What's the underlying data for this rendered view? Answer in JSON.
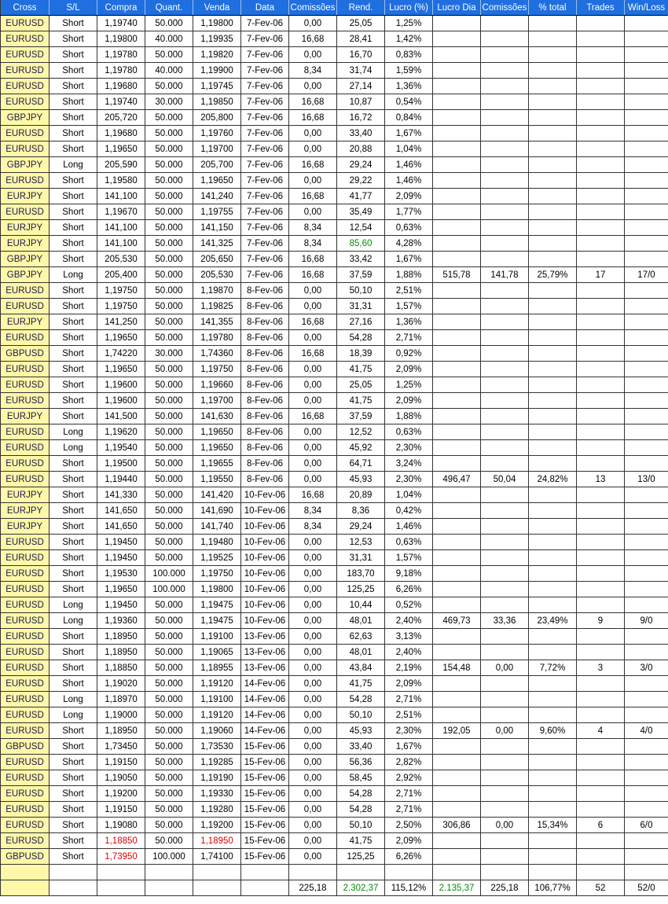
{
  "colors": {
    "header": "#1f6fe0",
    "cross_bg": "#fff8a8",
    "red": "#e00000",
    "green": "#0a8a0a"
  },
  "headers": [
    "Cross",
    "S/L",
    "Compra",
    "Quant.",
    "Venda",
    "Data",
    "Comissões",
    "Rend.",
    "Lucro (%)",
    "Lucro Dia",
    "Comissões",
    "% total",
    "Trades",
    "Win/Loss"
  ],
  "rows": [
    [
      "EURUSD",
      "Short",
      "1,19740",
      "50.000",
      "1,19800",
      "7-Fev-06",
      "0,00",
      "25,05",
      "1,25%",
      "",
      "",
      "",
      "",
      ""
    ],
    [
      "EURUSD",
      "Short",
      "1,19800",
      "40.000",
      "1,19935",
      "7-Fev-06",
      "16,68",
      "28,41",
      "1,42%",
      "",
      "",
      "",
      "",
      ""
    ],
    [
      "EURUSD",
      "Short",
      "1,19780",
      "50.000",
      "1,19820",
      "7-Fev-06",
      "0,00",
      "16,70",
      "0,83%",
      "",
      "",
      "",
      "",
      ""
    ],
    [
      "EURUSD",
      "Short",
      "1,19780",
      "40.000",
      "1,19900",
      "7-Fev-06",
      "8,34",
      "31,74",
      "1,59%",
      "",
      "",
      "",
      "",
      ""
    ],
    [
      "EURUSD",
      "Short",
      "1,19680",
      "50.000",
      "1,19745",
      "7-Fev-06",
      "0,00",
      "27,14",
      "1,36%",
      "",
      "",
      "",
      "",
      ""
    ],
    [
      "EURUSD",
      "Short",
      "1,19740",
      "30.000",
      "1,19850",
      "7-Fev-06",
      "16,68",
      "10,87",
      "0,54%",
      "",
      "",
      "",
      "",
      ""
    ],
    [
      "GBPJPY",
      "Short",
      "205,720",
      "50.000",
      "205,800",
      "7-Fev-06",
      "16,68",
      "16,72",
      "0,84%",
      "",
      "",
      "",
      "",
      ""
    ],
    [
      "EURUSD",
      "Short",
      "1,19680",
      "50.000",
      "1,19760",
      "7-Fev-06",
      "0,00",
      "33,40",
      "1,67%",
      "",
      "",
      "",
      "",
      ""
    ],
    [
      "EURUSD",
      "Short",
      "1,19650",
      "50.000",
      "1,19700",
      "7-Fev-06",
      "0,00",
      "20,88",
      "1,04%",
      "",
      "",
      "",
      "",
      ""
    ],
    [
      "GBPJPY",
      "Long",
      "205,590",
      "50.000",
      "205,700",
      "7-Fev-06",
      "16,68",
      "29,24",
      "1,46%",
      "",
      "",
      "",
      "",
      ""
    ],
    [
      "EURUSD",
      "Short",
      "1,19580",
      "50.000",
      "1,19650",
      "7-Fev-06",
      "0,00",
      "29,22",
      "1,46%",
      "",
      "",
      "",
      "",
      ""
    ],
    [
      "EURJPY",
      "Short",
      "141,100",
      "50.000",
      "141,240",
      "7-Fev-06",
      "16,68",
      "41,77",
      "2,09%",
      "",
      "",
      "",
      "",
      ""
    ],
    [
      "EURUSD",
      "Short",
      "1,19670",
      "50.000",
      "1,19755",
      "7-Fev-06",
      "0,00",
      "35,49",
      "1,77%",
      "",
      "",
      "",
      "",
      ""
    ],
    [
      "EURJPY",
      "Short",
      "141,100",
      "50.000",
      "141,150",
      "7-Fev-06",
      "8,34",
      "12,54",
      "0,63%",
      "",
      "",
      "",
      "",
      ""
    ],
    [
      "EURJPY",
      "Short",
      "141,100",
      "50.000",
      "141,325",
      "7-Fev-06",
      "8,34",
      "85,60",
      "4,28%",
      "",
      "",
      "",
      "",
      ""
    ],
    [
      "GBPJPY",
      "Short",
      "205,530",
      "50.000",
      "205,650",
      "7-Fev-06",
      "16,68",
      "33,42",
      "1,67%",
      "",
      "",
      "",
      "",
      ""
    ],
    [
      "GBPJPY",
      "Long",
      "205,400",
      "50.000",
      "205,530",
      "7-Fev-06",
      "16,68",
      "37,59",
      "1,88%",
      "515,78",
      "141,78",
      "25,79%",
      "17",
      "17/0"
    ],
    [
      "EURUSD",
      "Short",
      "1,19750",
      "50.000",
      "1,19870",
      "8-Fev-06",
      "0,00",
      "50,10",
      "2,51%",
      "",
      "",
      "",
      "",
      ""
    ],
    [
      "EURUSD",
      "Short",
      "1,19750",
      "50.000",
      "1,19825",
      "8-Fev-06",
      "0,00",
      "31,31",
      "1,57%",
      "",
      "",
      "",
      "",
      ""
    ],
    [
      "EURJPY",
      "Short",
      "141,250",
      "50.000",
      "141,355",
      "8-Fev-06",
      "16,68",
      "27,16",
      "1,36%",
      "",
      "",
      "",
      "",
      ""
    ],
    [
      "EURUSD",
      "Short",
      "1,19650",
      "50.000",
      "1,19780",
      "8-Fev-06",
      "0,00",
      "54,28",
      "2,71%",
      "",
      "",
      "",
      "",
      ""
    ],
    [
      "GBPUSD",
      "Short",
      "1,74220",
      "30.000",
      "1,74360",
      "8-Fev-06",
      "16,68",
      "18,39",
      "0,92%",
      "",
      "",
      "",
      "",
      ""
    ],
    [
      "EURUSD",
      "Short",
      "1,19650",
      "50.000",
      "1,19750",
      "8-Fev-06",
      "0,00",
      "41,75",
      "2,09%",
      "",
      "",
      "",
      "",
      ""
    ],
    [
      "EURUSD",
      "Short",
      "1,19600",
      "50.000",
      "1,19660",
      "8-Fev-06",
      "0,00",
      "25,05",
      "1,25%",
      "",
      "",
      "",
      "",
      ""
    ],
    [
      "EURUSD",
      "Short",
      "1,19600",
      "50.000",
      "1,19700",
      "8-Fev-06",
      "0,00",
      "41,75",
      "2,09%",
      "",
      "",
      "",
      "",
      ""
    ],
    [
      "EURJPY",
      "Short",
      "141,500",
      "50.000",
      "141,630",
      "8-Fev-06",
      "16,68",
      "37,59",
      "1,88%",
      "",
      "",
      "",
      "",
      ""
    ],
    [
      "EURUSD",
      "Long",
      "1,19620",
      "50.000",
      "1,19650",
      "8-Fev-06",
      "0,00",
      "12,52",
      "0,63%",
      "",
      "",
      "",
      "",
      ""
    ],
    [
      "EURUSD",
      "Long",
      "1,19540",
      "50.000",
      "1,19650",
      "8-Fev-06",
      "0,00",
      "45,92",
      "2,30%",
      "",
      "",
      "",
      "",
      ""
    ],
    [
      "EURUSD",
      "Short",
      "1,19500",
      "50.000",
      "1,19655",
      "8-Fev-06",
      "0,00",
      "64,71",
      "3,24%",
      "",
      "",
      "",
      "",
      ""
    ],
    [
      "EURUSD",
      "Short",
      "1,19440",
      "50.000",
      "1,19550",
      "8-Fev-06",
      "0,00",
      "45,93",
      "2,30%",
      "496,47",
      "50,04",
      "24,82%",
      "13",
      "13/0"
    ],
    [
      "EURJPY",
      "Short",
      "141,330",
      "50.000",
      "141,420",
      "10-Fev-06",
      "16,68",
      "20,89",
      "1,04%",
      "",
      "",
      "",
      "",
      ""
    ],
    [
      "EURJPY",
      "Short",
      "141,650",
      "50.000",
      "141,690",
      "10-Fev-06",
      "8,34",
      "8,36",
      "0,42%",
      "",
      "",
      "",
      "",
      ""
    ],
    [
      "EURJPY",
      "Short",
      "141,650",
      "50.000",
      "141,740",
      "10-Fev-06",
      "8,34",
      "29,24",
      "1,46%",
      "",
      "",
      "",
      "",
      ""
    ],
    [
      "EURUSD",
      "Short",
      "1,19450",
      "50.000",
      "1,19480",
      "10-Fev-06",
      "0,00",
      "12,53",
      "0,63%",
      "",
      "",
      "",
      "",
      ""
    ],
    [
      "EURUSD",
      "Short",
      "1,19450",
      "50.000",
      "1,19525",
      "10-Fev-06",
      "0,00",
      "31,31",
      "1,57%",
      "",
      "",
      "",
      "",
      ""
    ],
    [
      "EURUSD",
      "Short",
      "1,19530",
      "100.000",
      "1,19750",
      "10-Fev-06",
      "0,00",
      "183,70",
      "9,18%",
      "",
      "",
      "",
      "",
      ""
    ],
    [
      "EURUSD",
      "Short",
      "1,19650",
      "100.000",
      "1,19800",
      "10-Fev-06",
      "0,00",
      "125,25",
      "6,26%",
      "",
      "",
      "",
      "",
      ""
    ],
    [
      "EURUSD",
      "Long",
      "1,19450",
      "50.000",
      "1,19475",
      "10-Fev-06",
      "0,00",
      "10,44",
      "0,52%",
      "",
      "",
      "",
      "",
      ""
    ],
    [
      "EURUSD",
      "Long",
      "1,19360",
      "50.000",
      "1,19475",
      "10-Fev-06",
      "0,00",
      "48,01",
      "2,40%",
      "469,73",
      "33,36",
      "23,49%",
      "9",
      "9/0"
    ],
    [
      "EURUSD",
      "Short",
      "1,18950",
      "50.000",
      "1,19100",
      "13-Fev-06",
      "0,00",
      "62,63",
      "3,13%",
      "",
      "",
      "",
      "",
      ""
    ],
    [
      "EURUSD",
      "Short",
      "1,18950",
      "50.000",
      "1,19065",
      "13-Fev-06",
      "0,00",
      "48,01",
      "2,40%",
      "",
      "",
      "",
      "",
      ""
    ],
    [
      "EURUSD",
      "Short",
      "1,18850",
      "50.000",
      "1,18955",
      "13-Fev-06",
      "0,00",
      "43,84",
      "2,19%",
      "154,48",
      "0,00",
      "7,72%",
      "3",
      "3/0"
    ],
    [
      "EURUSD",
      "Short",
      "1,19020",
      "50.000",
      "1,19120",
      "14-Fev-06",
      "0,00",
      "41,75",
      "2,09%",
      "",
      "",
      "",
      "",
      ""
    ],
    [
      "EURUSD",
      "Long",
      "1,18970",
      "50.000",
      "1,19100",
      "14-Fev-06",
      "0,00",
      "54,28",
      "2,71%",
      "",
      "",
      "",
      "",
      ""
    ],
    [
      "EURUSD",
      "Long",
      "1,19000",
      "50.000",
      "1,19120",
      "14-Fev-06",
      "0,00",
      "50,10",
      "2,51%",
      "",
      "",
      "",
      "",
      ""
    ],
    [
      "EURUSD",
      "Short",
      "1,18950",
      "50.000",
      "1,19060",
      "14-Fev-06",
      "0,00",
      "45,93",
      "2,30%",
      "192,05",
      "0,00",
      "9,60%",
      "4",
      "4/0"
    ],
    [
      "GBPUSD",
      "Short",
      "1,73450",
      "50.000",
      "1,73530",
      "15-Fev-06",
      "0,00",
      "33,40",
      "1,67%",
      "",
      "",
      "",
      "",
      ""
    ],
    [
      "EURUSD",
      "Short",
      "1,19150",
      "50.000",
      "1,19285",
      "15-Fev-06",
      "0,00",
      "56,36",
      "2,82%",
      "",
      "",
      "",
      "",
      ""
    ],
    [
      "EURUSD",
      "Short",
      "1,19050",
      "50.000",
      "1,19190",
      "15-Fev-06",
      "0,00",
      "58,45",
      "2,92%",
      "",
      "",
      "",
      "",
      ""
    ],
    [
      "EURUSD",
      "Short",
      "1,19200",
      "50.000",
      "1,19330",
      "15-Fev-06",
      "0,00",
      "54,28",
      "2,71%",
      "",
      "",
      "",
      "",
      ""
    ],
    [
      "EURUSD",
      "Short",
      "1,19150",
      "50.000",
      "1,19280",
      "15-Fev-06",
      "0,00",
      "54,28",
      "2,71%",
      "",
      "",
      "",
      "",
      ""
    ],
    [
      "EURUSD",
      "Short",
      "1,19080",
      "50.000",
      "1,19200",
      "15-Fev-06",
      "0,00",
      "50,10",
      "2,50%",
      "306,86",
      "0,00",
      "15,34%",
      "6",
      "6/0"
    ],
    [
      "EURUSD",
      "Short",
      "1,18850",
      "50.000",
      "1,18950",
      "15-Fev-06",
      "0,00",
      "41,75",
      "2,09%",
      "",
      "",
      "",
      "",
      ""
    ],
    [
      "GBPUSD",
      "Short",
      "1,73950",
      "100.000",
      "1,74100",
      "15-Fev-06",
      "0,00",
      "125,25",
      "6,26%",
      "",
      "",
      "",
      "",
      ""
    ],
    [
      "",
      "",
      "",
      "",
      "",
      "",
      "",
      "",
      "",
      "",
      "",
      "",
      "",
      ""
    ],
    [
      "",
      "",
      "",
      "",
      "",
      "",
      "225,18",
      "2.302,37",
      "115,12%",
      "2.135,37",
      "225,18",
      "106,77%",
      "52",
      "52/0"
    ]
  ],
  "red_cells": [
    [
      52,
      2
    ],
    [
      52,
      4
    ],
    [
      53,
      2
    ]
  ],
  "green_cells": [
    [
      14,
      7
    ],
    [
      55,
      7
    ],
    [
      55,
      9
    ]
  ]
}
